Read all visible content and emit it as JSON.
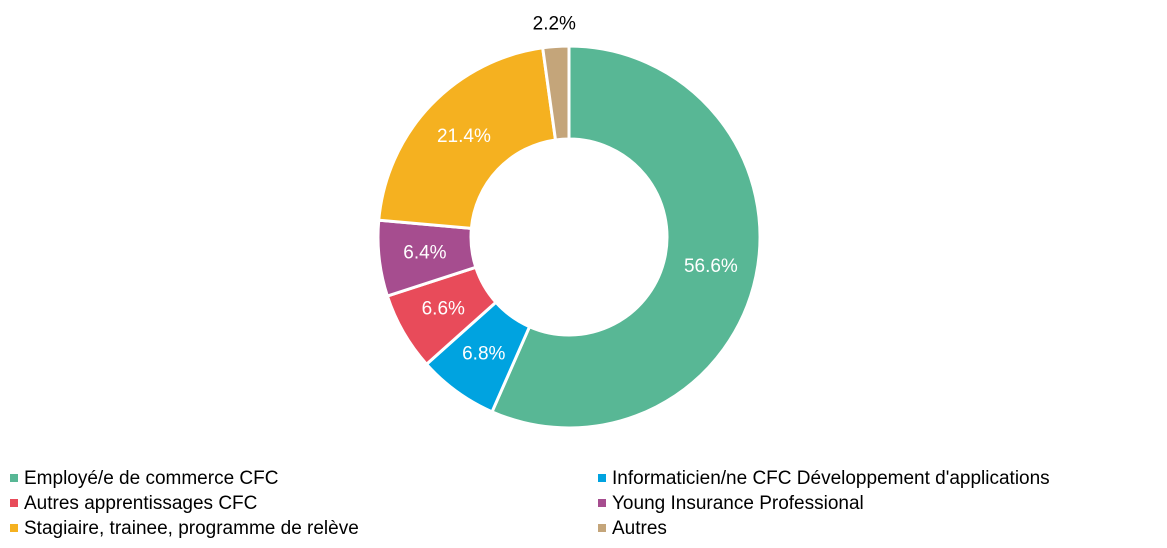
{
  "chart_data": {
    "type": "donut",
    "categories": [
      "Employé/e de commerce CFC",
      "Informaticien/ne CFC Développement d'applications",
      "Autres apprentissages CFC",
      "Young Insurance Professional",
      "Stagiaire, trainee, programme de relève",
      "Autres"
    ],
    "values": [
      56.6,
      6.8,
      6.6,
      6.4,
      21.4,
      2.2
    ],
    "value_labels": [
      "56.6%",
      "6.8%",
      "6.6%",
      "6.4%",
      "21.4%",
      "2.2%"
    ],
    "colors": [
      "#58b795",
      "#00a3e0",
      "#e84b5a",
      "#a64d8f",
      "#f5b120",
      "#c4a57a"
    ],
    "legend": "bottom"
  }
}
